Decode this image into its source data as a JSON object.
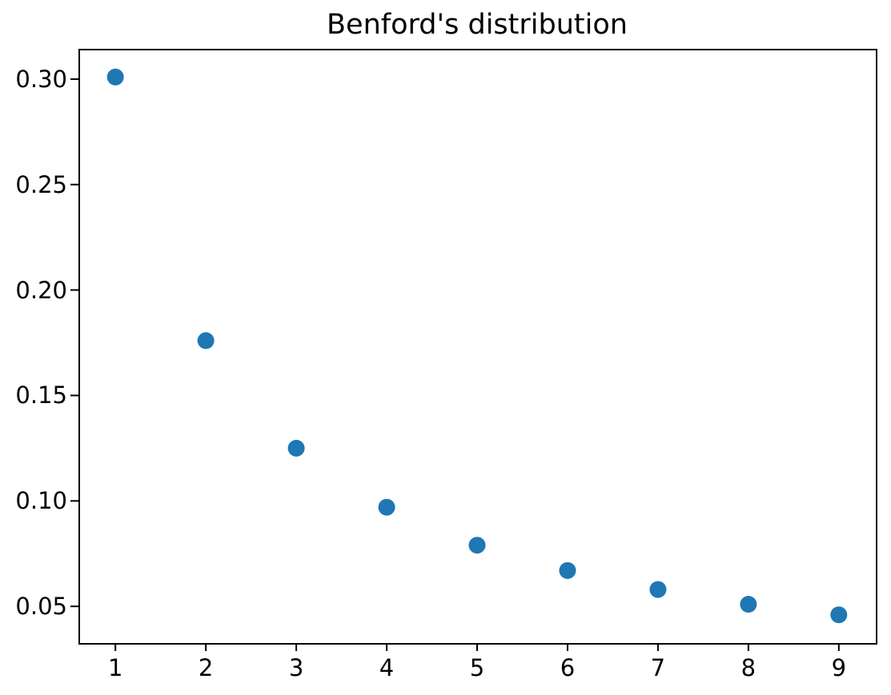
{
  "chart_data": {
    "type": "scatter",
    "title": "Benford's distribution",
    "xlabel": "",
    "ylabel": "",
    "x": [
      1,
      2,
      3,
      4,
      5,
      6,
      7,
      8,
      9
    ],
    "y": [
      0.301,
      0.176,
      0.125,
      0.097,
      0.079,
      0.067,
      0.058,
      0.051,
      0.046
    ],
    "xlim": [
      0.6,
      9.4
    ],
    "ylim": [
      0.033,
      0.314
    ],
    "x_tick_values": [
      1,
      2,
      3,
      4,
      5,
      6,
      7,
      8,
      9
    ],
    "x_tick_labels": [
      "1",
      "2",
      "3",
      "4",
      "5",
      "6",
      "7",
      "8",
      "9"
    ],
    "y_tick_values": [
      0.05,
      0.1,
      0.15,
      0.2,
      0.25,
      0.3
    ],
    "y_tick_labels": [
      "0.05",
      "0.10",
      "0.15",
      "0.20",
      "0.25",
      "0.30"
    ],
    "grid": false,
    "legend_position": "none",
    "marker_color": "#1f77b4",
    "spine_color": "#000000",
    "background_color": "#ffffff"
  }
}
